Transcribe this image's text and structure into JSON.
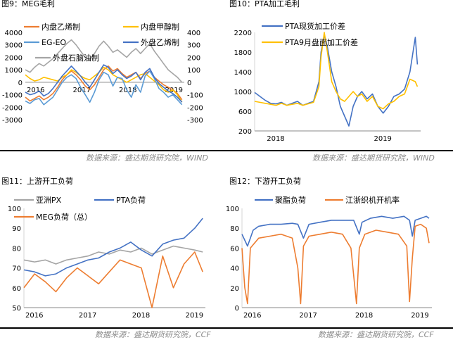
{
  "sources": {
    "top_left": "数据来源：盛达期货研究院，WIND",
    "top_right": "数据来源：盛达期货研究院，WIND",
    "bottom_left": "数据来源：盛达期货研究院，CCF",
    "bottom_right": "数据来源：盛达期货研究院，CCF"
  },
  "chart_data": [
    {
      "id": "fig9",
      "type": "line",
      "title": "图9：MEG毛利",
      "x_ticks": [
        "2016",
        "2017",
        "2018",
        "2019"
      ],
      "x_range": [
        2016,
        2019.45
      ],
      "ylim_left": [
        -3000,
        4000
      ],
      "yticks_left": [
        4000,
        3000,
        2000,
        1000,
        0,
        -1000,
        -2000,
        -3000
      ],
      "ylim_right": [
        -300,
        400
      ],
      "yticks_right": [
        400,
        300,
        200,
        100,
        0,
        -100,
        -200,
        -300
      ],
      "legend": "top",
      "series": [
        {
          "name": "内盘乙烯制",
          "color": "#ED7D31",
          "axis": "left",
          "x": [
            2016.0,
            2016.1,
            2016.2,
            2016.3,
            2016.4,
            2016.5,
            2016.6,
            2016.7,
            2016.8,
            2016.9,
            2017.0,
            2017.1,
            2017.2,
            2017.3,
            2017.4,
            2017.5,
            2017.6,
            2017.7,
            2017.8,
            2017.9,
            2018.0,
            2018.1,
            2018.2,
            2018.3,
            2018.4,
            2018.5,
            2018.6,
            2018.7,
            2018.8,
            2018.9,
            2019.0,
            2019.1,
            2019.2,
            2019.3,
            2019.4
          ],
          "y": [
            -1200,
            -1500,
            -1300,
            -1100,
            -1400,
            -1200,
            -900,
            -400,
            200,
            600,
            900,
            600,
            200,
            -300,
            -600,
            -200,
            400,
            1000,
            1300,
            900,
            1100,
            700,
            400,
            600,
            800,
            300,
            700,
            900,
            400,
            100,
            -200,
            -400,
            -600,
            -900,
            -1400
          ]
        },
        {
          "name": "内盘甲醇制",
          "color": "#FFC000",
          "axis": "right",
          "x": [
            2016.0,
            2016.1,
            2016.2,
            2016.3,
            2016.4,
            2016.5,
            2016.6,
            2016.7,
            2016.8,
            2016.9,
            2017.0,
            2017.1,
            2017.2,
            2017.3,
            2017.4,
            2017.5,
            2017.6,
            2017.7,
            2017.8,
            2017.9,
            2018.0,
            2018.1,
            2018.2,
            2018.3,
            2018.4,
            2018.5,
            2018.6,
            2018.7,
            2018.8,
            2018.9,
            2019.0,
            2019.1,
            2019.2,
            2019.3,
            2019.4
          ],
          "y": [
            60,
            30,
            10,
            20,
            40,
            30,
            20,
            10,
            40,
            60,
            100,
            80,
            50,
            30,
            20,
            50,
            80,
            120,
            100,
            60,
            40,
            20,
            0,
            20,
            40,
            60,
            70,
            40,
            10,
            -20,
            -60,
            -80,
            -60,
            -100,
            -160
          ]
        },
        {
          "name": "EG-EO",
          "color": "#5B9BD5",
          "axis": "left",
          "x": [
            2016.0,
            2016.1,
            2016.2,
            2016.3,
            2016.4,
            2016.5,
            2016.6,
            2016.7,
            2016.8,
            2016.9,
            2017.0,
            2017.1,
            2017.2,
            2017.3,
            2017.4,
            2017.5,
            2017.6,
            2017.7,
            2017.8,
            2017.9,
            2018.0,
            2018.1,
            2018.2,
            2018.3,
            2018.4,
            2018.5,
            2018.6,
            2018.7,
            2018.8,
            2018.9,
            2019.0,
            2019.1,
            2019.2,
            2019.3,
            2019.4
          ],
          "y": [
            -1500,
            -1700,
            -1400,
            -1300,
            -1800,
            -1500,
            -1200,
            -600,
            0,
            400,
            600,
            300,
            -400,
            -1000,
            -1600,
            -800,
            200,
            800,
            600,
            -300,
            400,
            300,
            -600,
            -1200,
            -200,
            -800,
            500,
            900,
            300,
            -500,
            -800,
            -1200,
            -1000,
            -1400,
            -1800
          ]
        },
        {
          "name": "外盘乙烯制",
          "color": "#4472C4",
          "axis": "left",
          "x": [
            2016.0,
            2016.1,
            2016.2,
            2016.3,
            2016.4,
            2016.5,
            2016.6,
            2016.7,
            2016.8,
            2016.9,
            2017.0,
            2017.1,
            2017.2,
            2017.3,
            2017.4,
            2017.5,
            2017.6,
            2017.7,
            2017.8,
            2017.9,
            2018.0,
            2018.1,
            2018.2,
            2018.3,
            2018.4,
            2018.5,
            2018.6,
            2018.7,
            2018.8,
            2018.9,
            2019.0,
            2019.1,
            2019.2,
            2019.3,
            2019.4
          ],
          "y": [
            -800,
            -1000,
            -900,
            -700,
            -1100,
            -900,
            -500,
            0,
            500,
            900,
            1300,
            900,
            500,
            0,
            -400,
            200,
            800,
            1400,
            1200,
            700,
            1000,
            600,
            300,
            500,
            800,
            200,
            800,
            1100,
            400,
            -100,
            -400,
            -700,
            -900,
            -1200,
            -1600
          ]
        },
        {
          "name": "外盘石脑油制",
          "color": "#A5A5A5",
          "axis": "left",
          "x": [
            2016.0,
            2016.1,
            2016.2,
            2016.3,
            2016.4,
            2016.5,
            2016.6,
            2016.7,
            2016.8,
            2016.9,
            2017.0,
            2017.1,
            2017.2,
            2017.3,
            2017.4,
            2017.5,
            2017.6,
            2017.7,
            2017.8,
            2017.9,
            2018.0,
            2018.1,
            2018.2,
            2018.3,
            2018.4,
            2018.5,
            2018.6,
            2018.7,
            2018.8,
            2018.9,
            2019.0,
            2019.1,
            2019.2,
            2019.3,
            2019.4
          ],
          "y": [
            1000,
            800,
            1200,
            1500,
            1300,
            1600,
            1900,
            2300,
            2700,
            3100,
            3400,
            3000,
            2500,
            2000,
            1800,
            2300,
            2900,
            3300,
            2900,
            2400,
            2600,
            2300,
            2000,
            2400,
            2700,
            2300,
            2700,
            3100,
            2500,
            2000,
            1500,
            1000,
            700,
            400,
            0
          ]
        }
      ]
    },
    {
      "id": "fig10",
      "type": "line",
      "title": "图10：PTA加工毛利",
      "x_ticks": [
        "2018",
        "2019"
      ],
      "x_range": [
        2017.9,
        2019.45
      ],
      "ylim": [
        200,
        2200
      ],
      "yticks": [
        2200,
        1800,
        1400,
        1000,
        600,
        200
      ],
      "legend": "top-left",
      "series": [
        {
          "name": "PTA现货加工价差",
          "color": "#4472C4",
          "x": [
            2017.9,
            2017.95,
            2018.0,
            2018.05,
            2018.1,
            2018.15,
            2018.2,
            2018.25,
            2018.3,
            2018.35,
            2018.4,
            2018.45,
            2018.5,
            2018.52,
            2018.55,
            2018.58,
            2018.62,
            2018.66,
            2018.7,
            2018.74,
            2018.78,
            2018.82,
            2018.86,
            2018.9,
            2018.95,
            2019.0,
            2019.05,
            2019.1,
            2019.15,
            2019.2,
            2019.25,
            2019.3,
            2019.35,
            2019.4,
            2019.42
          ],
          "y": [
            980,
            900,
            820,
            760,
            750,
            780,
            720,
            760,
            800,
            720,
            760,
            800,
            1200,
            1800,
            2150,
            1900,
            1400,
            1100,
            700,
            500,
            300,
            700,
            900,
            1000,
            850,
            950,
            700,
            560,
            700,
            900,
            950,
            1050,
            1400,
            2100,
            1550
          ]
        },
        {
          "name": "PTA9月盘面加工价差",
          "color": "#FFC000",
          "x": [
            2017.9,
            2017.95,
            2018.0,
            2018.05,
            2018.1,
            2018.15,
            2018.2,
            2018.25,
            2018.3,
            2018.35,
            2018.4,
            2018.45,
            2018.5,
            2018.52,
            2018.55,
            2018.58,
            2018.62,
            2018.66,
            2018.7,
            2018.74,
            2018.78,
            2018.82,
            2018.86,
            2018.9,
            2018.95,
            2019.0,
            2019.05,
            2019.1,
            2019.15,
            2019.2,
            2019.25,
            2019.3,
            2019.35,
            2019.4,
            2019.42
          ],
          "y": [
            800,
            780,
            760,
            740,
            720,
            760,
            720,
            740,
            760,
            720,
            750,
            780,
            1100,
            1700,
            2200,
            1800,
            1200,
            1000,
            850,
            800,
            900,
            1000,
            900,
            950,
            800,
            900,
            700,
            650,
            750,
            800,
            900,
            950,
            1250,
            1200,
            1100
          ]
        }
      ]
    },
    {
      "id": "fig11",
      "type": "line",
      "title": "图11：上游开工负荷",
      "x_ticks": [
        "2016",
        "2017",
        "2018",
        "2019"
      ],
      "x_range": [
        2016,
        2019.4
      ],
      "ylim": [
        50,
        100
      ],
      "yticks": [
        100,
        90,
        80,
        70,
        60,
        50
      ],
      "legend": "top",
      "series": [
        {
          "name": "亚洲PX",
          "color": "#A5A5A5",
          "x": [
            2016.0,
            2016.2,
            2016.4,
            2016.6,
            2016.8,
            2017.0,
            2017.2,
            2017.4,
            2017.6,
            2017.8,
            2018.0,
            2018.2,
            2018.4,
            2018.6,
            2018.8,
            2019.0,
            2019.2,
            2019.35
          ],
          "y": [
            74,
            73,
            74,
            72,
            74,
            75,
            76,
            78,
            77,
            79,
            78,
            80,
            77,
            79,
            81,
            80,
            79,
            78
          ]
        },
        {
          "name": "PTA负荷",
          "color": "#4472C4",
          "x": [
            2016.0,
            2016.2,
            2016.4,
            2016.6,
            2016.8,
            2017.0,
            2017.2,
            2017.4,
            2017.6,
            2017.8,
            2018.0,
            2018.2,
            2018.4,
            2018.6,
            2018.8,
            2019.0,
            2019.2,
            2019.35
          ],
          "y": [
            69,
            68,
            66,
            67,
            70,
            72,
            74,
            75,
            78,
            80,
            83,
            79,
            76,
            82,
            84,
            85,
            90,
            95
          ]
        },
        {
          "name": "MEG负荷（总）",
          "color": "#ED7D31",
          "x": [
            2016.0,
            2016.2,
            2016.4,
            2016.6,
            2016.8,
            2017.0,
            2017.2,
            2017.4,
            2017.6,
            2017.8,
            2018.0,
            2018.2,
            2018.4,
            2018.6,
            2018.8,
            2019.0,
            2019.2,
            2019.35
          ],
          "y": [
            60,
            67,
            63,
            58,
            65,
            70,
            66,
            62,
            68,
            74,
            72,
            70,
            50,
            76,
            60,
            72,
            78,
            68
          ]
        }
      ]
    },
    {
      "id": "fig12",
      "type": "line",
      "title": "图12：下游开工负荷",
      "x_ticks": [
        "2016",
        "2017",
        "2018",
        "2019"
      ],
      "x_range": [
        2016,
        2019.4
      ],
      "ylim": [
        0,
        100
      ],
      "yticks": [
        100,
        80,
        60,
        40,
        20,
        0
      ],
      "legend": "top",
      "series": [
        {
          "name": "聚酯负荷",
          "color": "#4472C4",
          "x": [
            2016.0,
            2016.1,
            2016.2,
            2016.3,
            2016.5,
            2016.7,
            2016.9,
            2017.0,
            2017.1,
            2017.2,
            2017.4,
            2017.6,
            2017.8,
            2018.0,
            2018.1,
            2018.15,
            2018.3,
            2018.5,
            2018.7,
            2018.9,
            2019.0,
            2019.05,
            2019.1,
            2019.2,
            2019.3,
            2019.35
          ],
          "y": [
            74,
            62,
            78,
            82,
            84,
            84,
            85,
            84,
            70,
            84,
            86,
            88,
            88,
            88,
            74,
            86,
            90,
            92,
            90,
            92,
            88,
            72,
            88,
            90,
            92,
            90
          ]
        },
        {
          "name": "江浙织机开机率",
          "color": "#ED7D31",
          "x": [
            2016.0,
            2016.05,
            2016.1,
            2016.15,
            2016.3,
            2016.5,
            2016.7,
            2016.9,
            2017.0,
            2017.05,
            2017.1,
            2017.2,
            2017.4,
            2017.6,
            2017.8,
            2017.95,
            2018.05,
            2018.1,
            2018.2,
            2018.4,
            2018.6,
            2018.8,
            2018.95,
            2019.0,
            2019.05,
            2019.1,
            2019.2,
            2019.3,
            2019.35
          ],
          "y": [
            60,
            20,
            4,
            60,
            70,
            72,
            74,
            70,
            40,
            4,
            62,
            72,
            74,
            76,
            74,
            60,
            4,
            60,
            74,
            78,
            76,
            74,
            62,
            6,
            50,
            82,
            84,
            80,
            65
          ]
        }
      ]
    }
  ]
}
